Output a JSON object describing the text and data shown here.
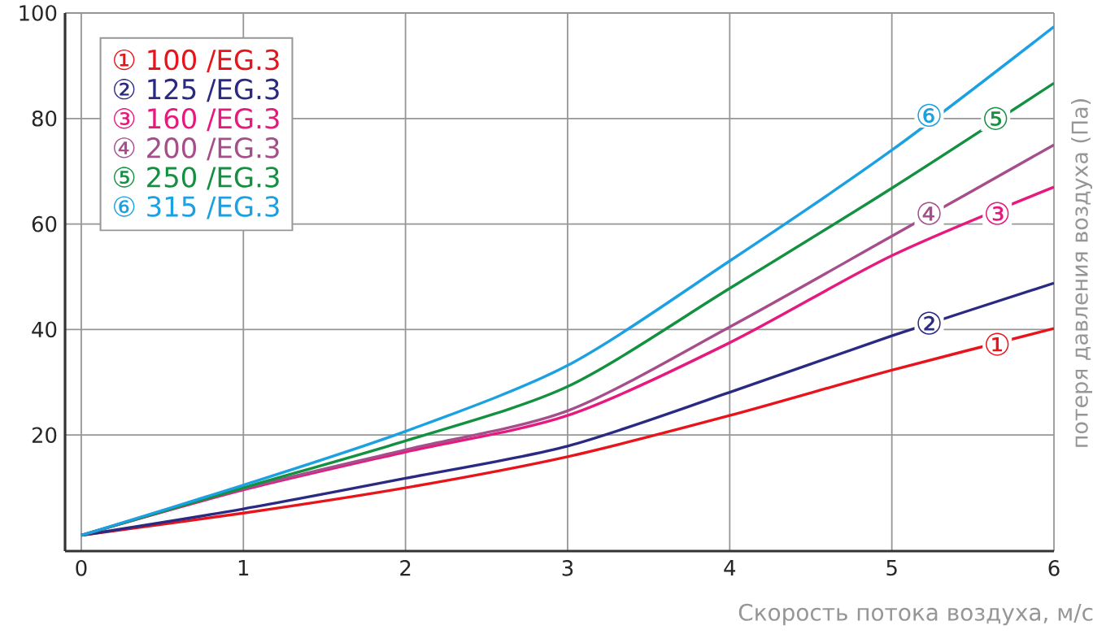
{
  "chart_data": {
    "type": "line",
    "xlabel": "Скорость потока воздуха, м/с",
    "ylabel": "потеря давления воздуха (Па)",
    "x": [
      0,
      1,
      2,
      3,
      4,
      5,
      6
    ],
    "series": [
      {
        "name": "① 100 /EG.3",
        "color": "#e8141b",
        "values": [
          1,
          5.2,
          10,
          15.9,
          23.7,
          32.3,
          40.2
        ]
      },
      {
        "name": "② 125 /EG.3",
        "color": "#2b2a83",
        "values": [
          1,
          6,
          11.8,
          17.9,
          28.1,
          38.8,
          48.8
        ]
      },
      {
        "name": "③ 160 /EG.3",
        "color": "#e6197f",
        "values": [
          1,
          9.6,
          16.8,
          23.7,
          37.5,
          54,
          67
        ]
      },
      {
        "name": "④ 200 /EG.3",
        "color": "#a64d8c",
        "values": [
          1,
          9.8,
          17.2,
          24.6,
          40.5,
          57.7,
          75
        ]
      },
      {
        "name": "⑤ 250 /EG.3",
        "color": "#139040",
        "values": [
          1,
          10,
          18.9,
          29.2,
          47.8,
          66.8,
          86.7
        ]
      },
      {
        "name": "⑥ 315 /EG.3",
        "color": "#1ba1e2",
        "values": [
          1,
          10.5,
          20.7,
          33.2,
          53,
          74,
          97.4
        ]
      }
    ],
    "annotations": [
      {
        "text": "①",
        "x": 5.65,
        "y": 37.2
      },
      {
        "text": "②",
        "x": 5.23,
        "y": 41.2
      },
      {
        "text": "③",
        "x": 5.65,
        "y": 62
      },
      {
        "text": "④",
        "x": 5.23,
        "y": 62
      },
      {
        "text": "⑤",
        "x": 5.64,
        "y": 80
      },
      {
        "text": "⑥",
        "x": 5.23,
        "y": 80.6
      }
    ],
    "xlim": [
      -0.1,
      6
    ],
    "ylim": [
      -2,
      100
    ],
    "xticks": [
      0,
      1,
      2,
      3,
      4,
      5,
      6
    ],
    "yticks": [
      20,
      40,
      60,
      80,
      100
    ],
    "grid": true,
    "legend": "top left",
    "marker": "none",
    "line_style": "solid"
  }
}
